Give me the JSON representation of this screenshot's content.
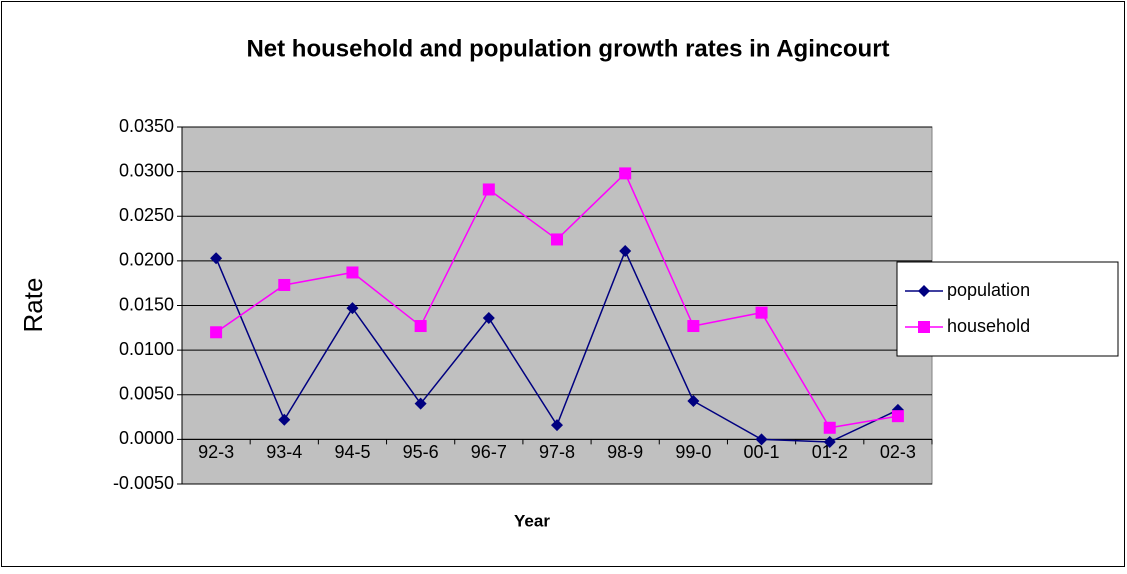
{
  "chart_data": {
    "type": "line",
    "title": "Net household and population growth rates in Agincourt",
    "x_label": "Year",
    "y_label": "Rate",
    "categories": [
      "92-3",
      "93-4",
      "94-5",
      "95-6",
      "96-7",
      "97-8",
      "98-9",
      "99-0",
      "00-1",
      "01-2",
      "02-3"
    ],
    "series": [
      {
        "name": "population",
        "color": "#000080",
        "marker": "diamond",
        "values": [
          0.0203,
          0.0022,
          0.0147,
          0.004,
          0.0136,
          0.0016,
          0.0211,
          0.0043,
          0.0,
          -0.0003,
          0.0033
        ]
      },
      {
        "name": "household",
        "color": "#ff00ff",
        "marker": "square",
        "values": [
          0.012,
          0.0173,
          0.0187,
          0.0127,
          0.028,
          0.0224,
          0.0298,
          0.0127,
          0.0142,
          0.0013,
          0.0026
        ]
      }
    ],
    "ylim": [
      -0.005,
      0.035
    ],
    "yticks": [
      {
        "value": -0.005,
        "label": "-0.0050"
      },
      {
        "value": 0,
        "label": "0.0000"
      },
      {
        "value": 0.005,
        "label": "0.0050"
      },
      {
        "value": 0.01,
        "label": "0.0100"
      },
      {
        "value": 0.015,
        "label": "0.0150"
      },
      {
        "value": 0.02,
        "label": "0.0200"
      },
      {
        "value": 0.025,
        "label": "0.0250"
      },
      {
        "value": 0.03,
        "label": "0.0300"
      },
      {
        "value": 0.035,
        "label": "0.0350"
      }
    ],
    "grid": true,
    "legend": "right",
    "plot_background": "#c0c0c0"
  }
}
